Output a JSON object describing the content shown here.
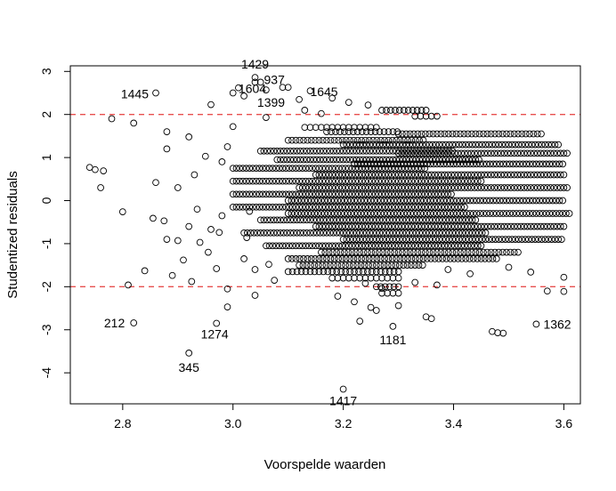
{
  "chart_data": {
    "type": "scatter",
    "title": "",
    "xlabel": "Voorspelde waarden",
    "ylabel": "Studentized residuals",
    "xlim": [
      2.705,
      3.63
    ],
    "ylim": [
      -4.72,
      3.13
    ],
    "x_ticks": [
      "2.8",
      "3.0",
      "3.2",
      "3.4",
      "3.6"
    ],
    "y_ticks": [
      "-4",
      "-3",
      "-2",
      "-1",
      "0",
      "1",
      "2",
      "3"
    ],
    "reference_lines": {
      "y": [
        2,
        -2
      ],
      "color": "#e8504f",
      "style": "dashed"
    },
    "labeled_points": [
      {
        "label": "1429",
        "x": 3.04,
        "y": 2.86
      },
      {
        "label": "1445",
        "x": 2.86,
        "y": 2.5
      },
      {
        "label": "1604",
        "x": 3.01,
        "y": 2.62
      },
      {
        "label": "937",
        "x": 3.04,
        "y": 2.75
      },
      {
        "label": "1645",
        "x": 3.14,
        "y": 2.55
      },
      {
        "label": "1399",
        "x": 3.06,
        "y": 1.93
      },
      {
        "label": "212",
        "x": 2.82,
        "y": -2.84
      },
      {
        "label": "1274",
        "x": 2.97,
        "y": -2.85
      },
      {
        "label": "345",
        "x": 2.92,
        "y": -3.54
      },
      {
        "label": "1181",
        "x": 3.29,
        "y": -2.92
      },
      {
        "label": "1362",
        "x": 3.55,
        "y": -2.87
      },
      {
        "label": "1417",
        "x": 3.2,
        "y": -4.38
      }
    ],
    "points": [
      {
        "x": 2.74,
        "y": 0.77
      },
      {
        "x": 2.75,
        "y": 0.72
      },
      {
        "x": 2.76,
        "y": 0.3
      },
      {
        "x": 2.765,
        "y": 0.69
      },
      {
        "x": 2.78,
        "y": 1.9
      },
      {
        "x": 2.8,
        "y": -0.26
      },
      {
        "x": 2.81,
        "y": -1.96
      },
      {
        "x": 2.82,
        "y": 1.8
      },
      {
        "x": 2.84,
        "y": -1.63
      },
      {
        "x": 2.855,
        "y": -0.41
      },
      {
        "x": 2.86,
        "y": 0.42
      },
      {
        "x": 2.875,
        "y": -0.47
      },
      {
        "x": 2.88,
        "y": -0.9
      },
      {
        "x": 2.89,
        "y": -1.74
      },
      {
        "x": 2.88,
        "y": 1.6
      },
      {
        "x": 2.88,
        "y": 1.2
      },
      {
        "x": 2.9,
        "y": -0.93
      },
      {
        "x": 2.9,
        "y": 0.3
      },
      {
        "x": 2.91,
        "y": -1.38
      },
      {
        "x": 2.92,
        "y": -0.6
      },
      {
        "x": 2.92,
        "y": 1.48
      },
      {
        "x": 2.925,
        "y": -1.88
      },
      {
        "x": 2.93,
        "y": 0.6
      },
      {
        "x": 2.935,
        "y": -0.2
      },
      {
        "x": 2.94,
        "y": -0.97
      },
      {
        "x": 2.95,
        "y": 1.03
      },
      {
        "x": 2.955,
        "y": -1.2
      },
      {
        "x": 2.96,
        "y": -0.67
      },
      {
        "x": 2.96,
        "y": 2.23
      },
      {
        "x": 2.97,
        "y": -1.58
      },
      {
        "x": 2.975,
        "y": -0.74
      },
      {
        "x": 2.98,
        "y": 0.9
      },
      {
        "x": 2.98,
        "y": -0.35
      },
      {
        "x": 2.99,
        "y": -2.47
      },
      {
        "x": 2.99,
        "y": -2.05
      },
      {
        "x": 2.99,
        "y": 1.25
      },
      {
        "x": 3.0,
        "y": 1.72
      },
      {
        "x": 3.0,
        "y": 2.5
      },
      {
        "x": 3.02,
        "y": -1.35
      },
      {
        "x": 3.02,
        "y": 2.43
      },
      {
        "x": 3.025,
        "y": -0.86
      },
      {
        "x": 3.03,
        "y": -0.25
      },
      {
        "x": 3.04,
        "y": -1.6
      },
      {
        "x": 3.04,
        "y": -2.2
      },
      {
        "x": 3.05,
        "y": 2.75
      },
      {
        "x": 3.06,
        "y": 2.57
      },
      {
        "x": 3.065,
        "y": -1.48
      },
      {
        "x": 3.075,
        "y": -1.85
      },
      {
        "x": 3.09,
        "y": 2.63
      },
      {
        "x": 3.1,
        "y": 2.63
      },
      {
        "x": 3.12,
        "y": 2.35
      },
      {
        "x": 3.13,
        "y": 2.1
      },
      {
        "x": 3.16,
        "y": 2.02
      },
      {
        "x": 3.18,
        "y": 2.38
      },
      {
        "x": 3.19,
        "y": -2.22
      },
      {
        "x": 3.21,
        "y": 2.28
      },
      {
        "x": 3.22,
        "y": -2.35
      },
      {
        "x": 3.23,
        "y": -2.8
      },
      {
        "x": 3.24,
        "y": -1.92
      },
      {
        "x": 3.245,
        "y": 2.22
      },
      {
        "x": 3.25,
        "y": -2.48
      },
      {
        "x": 3.26,
        "y": -2.55
      },
      {
        "x": 3.27,
        "y": -2.04
      },
      {
        "x": 3.3,
        "y": -2.44
      },
      {
        "x": 3.33,
        "y": -1.9
      },
      {
        "x": 3.35,
        "y": -2.7
      },
      {
        "x": 3.36,
        "y": -2.74
      },
      {
        "x": 3.37,
        "y": -1.96
      },
      {
        "x": 3.39,
        "y": -1.6
      },
      {
        "x": 3.43,
        "y": -1.7
      },
      {
        "x": 3.47,
        "y": -3.04
      },
      {
        "x": 3.48,
        "y": -3.07
      },
      {
        "x": 3.49,
        "y": -3.08
      },
      {
        "x": 3.5,
        "y": -1.55
      },
      {
        "x": 3.54,
        "y": -1.66
      },
      {
        "x": 3.57,
        "y": -2.1
      },
      {
        "x": 3.6,
        "y": -1.78
      },
      {
        "x": 3.6,
        "y": -2.11
      }
    ],
    "bands": [
      {
        "y": 2.1,
        "x_start": 3.27,
        "x_end": 3.35,
        "step": 0.008
      },
      {
        "y": 1.96,
        "x_start": 3.33,
        "x_end": 3.37,
        "step": 0.01
      },
      {
        "y": 1.7,
        "x_start": 3.13,
        "x_end": 3.26,
        "step": 0.01
      },
      {
        "y": 1.6,
        "x_start": 3.17,
        "x_end": 3.3,
        "step": 0.008
      },
      {
        "y": 1.55,
        "x_start": 3.3,
        "x_end": 3.56,
        "step": 0.007
      },
      {
        "y": 1.4,
        "x_start": 3.1,
        "x_end": 3.35,
        "step": 0.007
      },
      {
        "y": 1.3,
        "x_start": 3.2,
        "x_end": 3.59,
        "step": 0.006
      },
      {
        "y": 1.15,
        "x_start": 3.05,
        "x_end": 3.4,
        "step": 0.006
      },
      {
        "y": 1.1,
        "x_start": 3.3,
        "x_end": 3.61,
        "step": 0.006
      },
      {
        "y": 0.95,
        "x_start": 3.08,
        "x_end": 3.45,
        "step": 0.006
      },
      {
        "y": 0.85,
        "x_start": 3.22,
        "x_end": 3.6,
        "step": 0.006
      },
      {
        "y": 0.75,
        "x_start": 3.0,
        "x_end": 3.35,
        "step": 0.006
      },
      {
        "y": 0.6,
        "x_start": 3.15,
        "x_end": 3.6,
        "step": 0.006
      },
      {
        "y": 0.45,
        "x_start": 3.0,
        "x_end": 3.45,
        "step": 0.006
      },
      {
        "y": 0.3,
        "x_start": 3.12,
        "x_end": 3.61,
        "step": 0.006
      },
      {
        "y": 0.15,
        "x_start": 3.0,
        "x_end": 3.4,
        "step": 0.006
      },
      {
        "y": 0.0,
        "x_start": 3.1,
        "x_end": 3.6,
        "step": 0.006
      },
      {
        "y": -0.15,
        "x_start": 3.0,
        "x_end": 3.42,
        "step": 0.006
      },
      {
        "y": -0.3,
        "x_start": 3.1,
        "x_end": 3.61,
        "step": 0.006
      },
      {
        "y": -0.45,
        "x_start": 3.05,
        "x_end": 3.44,
        "step": 0.006
      },
      {
        "y": -0.6,
        "x_start": 3.15,
        "x_end": 3.6,
        "step": 0.006
      },
      {
        "y": -0.75,
        "x_start": 3.02,
        "x_end": 3.46,
        "step": 0.006
      },
      {
        "y": -0.9,
        "x_start": 3.2,
        "x_end": 3.6,
        "step": 0.006
      },
      {
        "y": -1.05,
        "x_start": 3.06,
        "x_end": 3.45,
        "step": 0.006
      },
      {
        "y": -1.2,
        "x_start": 3.16,
        "x_end": 3.52,
        "step": 0.007
      },
      {
        "y": -1.35,
        "x_start": 3.1,
        "x_end": 3.48,
        "step": 0.007
      },
      {
        "y": -1.5,
        "x_start": 3.12,
        "x_end": 3.35,
        "step": 0.007
      },
      {
        "y": -1.65,
        "x_start": 3.1,
        "x_end": 3.3,
        "step": 0.008
      },
      {
        "y": -1.8,
        "x_start": 3.18,
        "x_end": 3.3,
        "step": 0.01
      },
      {
        "y": -2.0,
        "x_start": 3.26,
        "x_end": 3.3,
        "step": 0.008
      },
      {
        "y": -2.15,
        "x_start": 3.27,
        "x_end": 3.3,
        "step": 0.01
      }
    ]
  }
}
